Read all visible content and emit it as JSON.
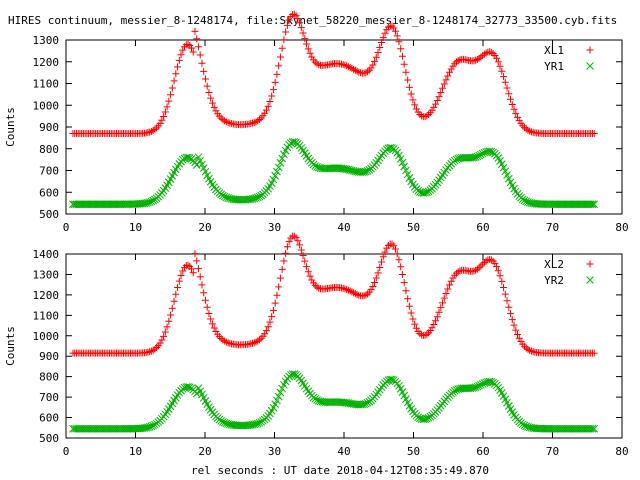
{
  "title": "HIRES continuum, messier_8-1248174, file:Skynet_58220_messier_8-1248174_32773_33500.cyb.fits",
  "xlabel": "rel seconds : UT date 2018-04-12T08:35:49.870",
  "chart_data": [
    {
      "type": "scatter",
      "ylabel": "Counts",
      "xlim": [
        0,
        80
      ],
      "ylim": [
        500,
        1300
      ],
      "xticks": [
        0,
        10,
        20,
        30,
        40,
        50,
        60,
        70,
        80
      ],
      "yticks": [
        500,
        600,
        700,
        800,
        900,
        1000,
        1100,
        1200,
        1300
      ],
      "grid": false,
      "legend_position": "top-right",
      "x_range": [
        1,
        76
      ],
      "point_count": 300,
      "series": [
        {
          "name": "XL1",
          "marker": "+",
          "color": "#ff0000",
          "baseline": 870,
          "peaks": [
            {
              "x": 17.5,
              "height": 410,
              "width": 1.9
            },
            {
              "x": 32.5,
              "height": 380,
              "width": 1.7
            },
            {
              "x": 39.0,
              "height": 320,
              "width": 5.5
            },
            {
              "x": 47.0,
              "height": 380,
              "width": 1.8
            },
            {
              "x": 56.5,
              "height": 320,
              "width": 2.4
            },
            {
              "x": 61.5,
              "height": 330,
              "width": 2.0
            }
          ],
          "tails": [
            {
              "x": 18.5,
              "height": 120,
              "width": 4.5
            }
          ]
        },
        {
          "name": "YR1",
          "marker": "x",
          "color": "#00b000",
          "baseline": 545,
          "peaks": [
            {
              "x": 17.5,
              "height": 215,
              "width": 2.2
            },
            {
              "x": 32.5,
              "height": 200,
              "width": 1.8
            },
            {
              "x": 39.0,
              "height": 165,
              "width": 5.5
            },
            {
              "x": 47.0,
              "height": 200,
              "width": 1.9
            },
            {
              "x": 56.5,
              "height": 200,
              "width": 2.5
            },
            {
              "x": 61.5,
              "height": 210,
              "width": 2.0
            }
          ],
          "tails": [
            {
              "x": 19.0,
              "height": 50,
              "width": 4.5
            }
          ]
        }
      ]
    },
    {
      "type": "scatter",
      "ylabel": "Counts",
      "xlim": [
        0,
        80
      ],
      "ylim": [
        500,
        1400
      ],
      "xticks": [
        0,
        10,
        20,
        30,
        40,
        50,
        60,
        70,
        80
      ],
      "yticks": [
        500,
        600,
        700,
        800,
        900,
        1000,
        1100,
        1200,
        1300,
        1400
      ],
      "grid": false,
      "legend_position": "top-right",
      "x_range": [
        1,
        76
      ],
      "point_count": 300,
      "series": [
        {
          "name": "XL2",
          "marker": "+",
          "color": "#ff0000",
          "baseline": 915,
          "peaks": [
            {
              "x": 17.5,
              "height": 430,
              "width": 1.9
            },
            {
              "x": 32.5,
              "height": 405,
              "width": 1.7
            },
            {
              "x": 39.0,
              "height": 320,
              "width": 5.5
            },
            {
              "x": 47.0,
              "height": 420,
              "width": 1.8
            },
            {
              "x": 56.5,
              "height": 380,
              "width": 2.4
            },
            {
              "x": 61.5,
              "height": 405,
              "width": 2.0
            }
          ],
          "tails": [
            {
              "x": 18.5,
              "height": 120,
              "width": 4.5
            }
          ]
        },
        {
          "name": "YR2",
          "marker": "x",
          "color": "#00b000",
          "baseline": 545,
          "peaks": [
            {
              "x": 17.5,
              "height": 205,
              "width": 2.2
            },
            {
              "x": 32.5,
              "height": 200,
              "width": 1.8
            },
            {
              "x": 39.0,
              "height": 130,
              "width": 5.5
            },
            {
              "x": 47.0,
              "height": 195,
              "width": 1.9
            },
            {
              "x": 56.5,
              "height": 185,
              "width": 2.5
            },
            {
              "x": 61.5,
              "height": 200,
              "width": 2.0
            }
          ],
          "tails": [
            {
              "x": 19.0,
              "height": 40,
              "width": 4.5
            }
          ]
        }
      ]
    }
  ]
}
